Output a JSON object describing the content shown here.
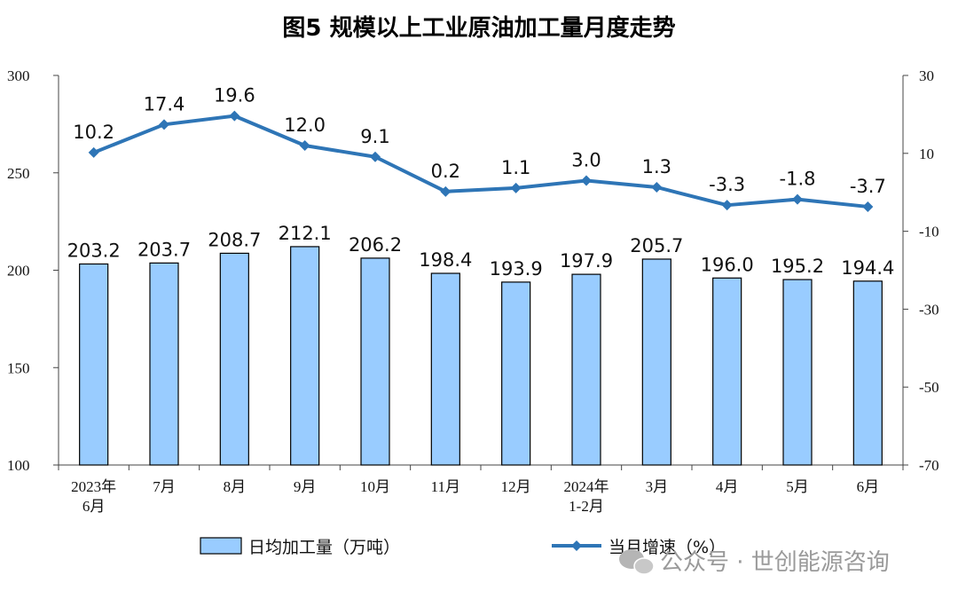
{
  "chart_data": {
    "type": "bar",
    "title": "图5  规模以上工业原油加工量月度走势",
    "categories": [
      [
        "2023年",
        "6月"
      ],
      [
        "7月"
      ],
      [
        "8月"
      ],
      [
        "9月"
      ],
      [
        "10月"
      ],
      [
        "11月"
      ],
      [
        "12月"
      ],
      [
        "2024年",
        "1-2月"
      ],
      [
        "3月"
      ],
      [
        "4月"
      ],
      [
        "5月"
      ],
      [
        "6月"
      ]
    ],
    "series": [
      {
        "name": "日均加工量（万吨）",
        "type": "bar",
        "axis": "left",
        "color": "#99ccff",
        "values": [
          203.2,
          203.7,
          208.7,
          212.1,
          206.2,
          198.4,
          193.9,
          197.9,
          205.7,
          196.0,
          195.2,
          194.4
        ]
      },
      {
        "name": "当月增速（%）",
        "type": "line",
        "axis": "right",
        "color": "#2e75b6",
        "values": [
          10.2,
          17.4,
          19.6,
          12.0,
          9.1,
          0.2,
          1.1,
          3.0,
          1.3,
          -3.3,
          -1.8,
          -3.7
        ]
      }
    ],
    "y_left": {
      "ylim": [
        100,
        300
      ],
      "ticks": [
        100,
        150,
        200,
        250,
        300
      ]
    },
    "y_right": {
      "ylim": [
        -70,
        30
      ],
      "ticks": [
        30,
        10,
        -10,
        -30,
        -50,
        -70
      ]
    },
    "legend": "bottom",
    "grid": false
  },
  "watermark": {
    "text": "公众号 · 世创能源咨询",
    "icon": "wechat-icon"
  }
}
